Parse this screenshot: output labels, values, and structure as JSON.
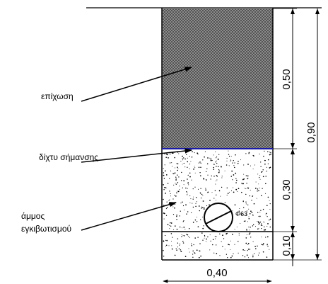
{
  "labels": {
    "backfill": "επίχωση",
    "warning_net": "δίχτυ σήμανσης",
    "bedding_sand_line1": "άμμος",
    "bedding_sand_line2": "εγκιβωτισμού",
    "pipe": "Φ63"
  },
  "dimensions": {
    "width": "0,40",
    "top_layer": "0,50",
    "middle_layer": "0,30",
    "bottom_layer": "0,10",
    "total_depth": "0,90"
  },
  "colors": {
    "warning_net": "#1a1aa8",
    "line": "#000000"
  }
}
